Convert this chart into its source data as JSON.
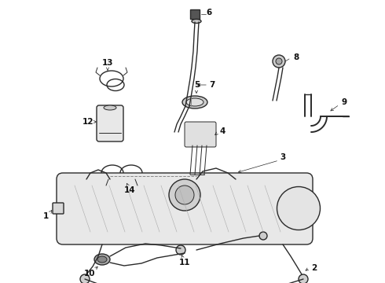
{
  "bg_color": "#ffffff",
  "line_color": "#2a2a2a",
  "label_color": "#111111",
  "figsize": [
    4.9,
    3.6
  ],
  "dpi": 100,
  "lw_thin": 0.7,
  "lw_med": 1.0,
  "lw_thick": 1.4,
  "label_fontsize": 7.5,
  "xlim": [
    0,
    490
  ],
  "ylim": [
    0,
    360
  ]
}
